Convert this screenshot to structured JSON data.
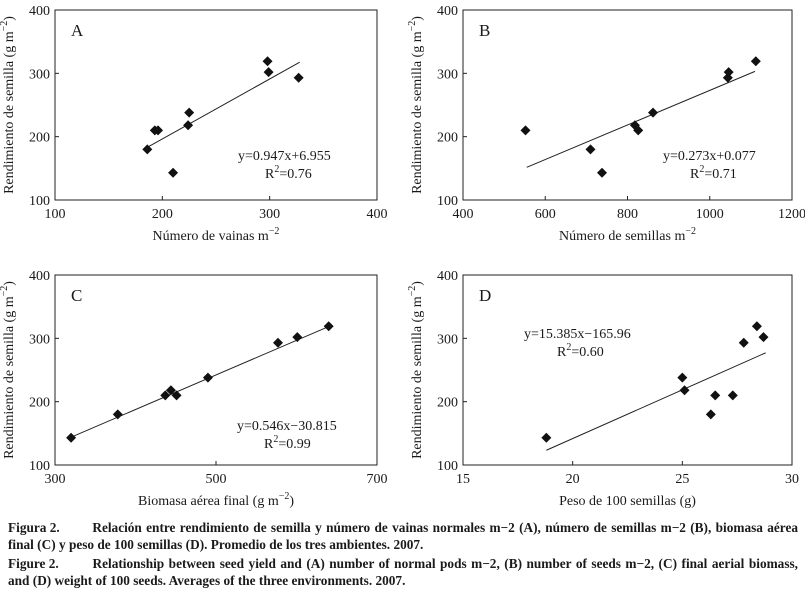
{
  "chart_data": [
    {
      "type": "scatter",
      "panel": "A",
      "xlabel": "Número de vainas m",
      "xlabel_sup": "−2",
      "ylabel": "Rendimiento de semilla (g m",
      "ylabel_sup": "−2",
      "ylabel_end": ")",
      "xlim": [
        100,
        400
      ],
      "ylim": [
        100,
        400
      ],
      "xticks": [
        100,
        200,
        300,
        400
      ],
      "yticks": [
        100,
        200,
        300,
        400
      ],
      "points": [
        {
          "x": 186,
          "y": 180
        },
        {
          "x": 193,
          "y": 210
        },
        {
          "x": 196,
          "y": 210
        },
        {
          "x": 210,
          "y": 143
        },
        {
          "x": 224,
          "y": 218
        },
        {
          "x": 225,
          "y": 238
        },
        {
          "x": 298,
          "y": 319
        },
        {
          "x": 299,
          "y": 302
        },
        {
          "x": 327,
          "y": 293
        }
      ],
      "trendline": {
        "x": [
          186,
          328
        ],
        "slope": 0.947,
        "intercept": 6.955
      },
      "equation": "y=0.947x+6.955",
      "r2_prefix": "R",
      "r2_value": "=0.76"
    },
    {
      "type": "scatter",
      "panel": "B",
      "xlabel": "Número de semillas m",
      "xlabel_sup": "−2",
      "ylabel": "Rendimiento de semilla (g m",
      "ylabel_sup": "−2",
      "ylabel_end": ")",
      "xlim": [
        400,
        1200
      ],
      "ylim": [
        100,
        400
      ],
      "xticks": [
        400,
        600,
        800,
        1000,
        1200
      ],
      "yticks": [
        100,
        200,
        300,
        400
      ],
      "points": [
        {
          "x": 552,
          "y": 210
        },
        {
          "x": 710,
          "y": 180
        },
        {
          "x": 738,
          "y": 143
        },
        {
          "x": 818,
          "y": 218
        },
        {
          "x": 826,
          "y": 210
        },
        {
          "x": 862,
          "y": 238
        },
        {
          "x": 1044,
          "y": 293
        },
        {
          "x": 1046,
          "y": 302
        },
        {
          "x": 1112,
          "y": 319
        }
      ],
      "trendline": {
        "x": [
          555,
          1110
        ],
        "slope": 0.273,
        "intercept": 0.077
      },
      "equation": "y=0.273x+0.077",
      "r2_prefix": "R",
      "r2_value": "=0.71"
    },
    {
      "type": "scatter",
      "panel": "C",
      "xlabel": "Biomasa aérea final (g m",
      "xlabel_sup": "−2",
      "xlabel_end": ")",
      "ylabel": "Rendimiento de semilla (g m",
      "ylabel_sup": "−2",
      "ylabel_end": ")",
      "xlim": [
        300,
        700
      ],
      "ylim": [
        100,
        400
      ],
      "xticks": [
        300,
        500,
        700
      ],
      "yticks": [
        100,
        200,
        300,
        400
      ],
      "points": [
        {
          "x": 320,
          "y": 143
        },
        {
          "x": 378,
          "y": 180
        },
        {
          "x": 437,
          "y": 210
        },
        {
          "x": 444,
          "y": 218
        },
        {
          "x": 451,
          "y": 210
        },
        {
          "x": 490,
          "y": 238
        },
        {
          "x": 577,
          "y": 293
        },
        {
          "x": 601,
          "y": 302
        },
        {
          "x": 640,
          "y": 319
        }
      ],
      "trendline": {
        "x": [
          320,
          640
        ],
        "slope": 0.546,
        "intercept": -30.815
      },
      "equation": "y=0.546x−30.815",
      "r2_prefix": "R",
      "r2_value": "=0.99"
    },
    {
      "type": "scatter",
      "panel": "D",
      "xlabel": "Peso de 100 semillas (g)",
      "ylabel": "Rendimiento de semilla (g m",
      "ylabel_sup": "−2",
      "ylabel_end": ")",
      "xlim": [
        15,
        30
      ],
      "ylim": [
        100,
        400
      ],
      "xticks": [
        15,
        20,
        25,
        30
      ],
      "yticks": [
        100,
        200,
        300,
        400
      ],
      "points": [
        {
          "x": 18.8,
          "y": 143
        },
        {
          "x": 25.0,
          "y": 238
        },
        {
          "x": 25.1,
          "y": 218
        },
        {
          "x": 26.3,
          "y": 180
        },
        {
          "x": 26.5,
          "y": 210
        },
        {
          "x": 27.3,
          "y": 210
        },
        {
          "x": 27.8,
          "y": 293
        },
        {
          "x": 28.4,
          "y": 319
        },
        {
          "x": 28.7,
          "y": 302
        }
      ],
      "trendline": {
        "x": [
          18.8,
          28.8
        ],
        "slope": 15.385,
        "intercept": -165.96
      },
      "equation": "y=15.385x−165.96",
      "r2_prefix": "R",
      "r2_value": "=0.60"
    }
  ],
  "caption": {
    "es_label": "Figura 2.",
    "es_text": "Relación entre rendimiento de semilla y número de vainas normales m−2 (A), número de semillas m−2 (B), biomasa aérea final (C) y peso de 100 semillas (D). Promedio de los tres ambientes. 2007.",
    "en_label": "Figure 2.",
    "en_text": "Relationship between seed yield and (A) number of normal pods m−2, (B) number of seeds m−2, (C) final aerial biomass, and (D) weight of 100 seeds. Averages of the three environments. 2007."
  }
}
